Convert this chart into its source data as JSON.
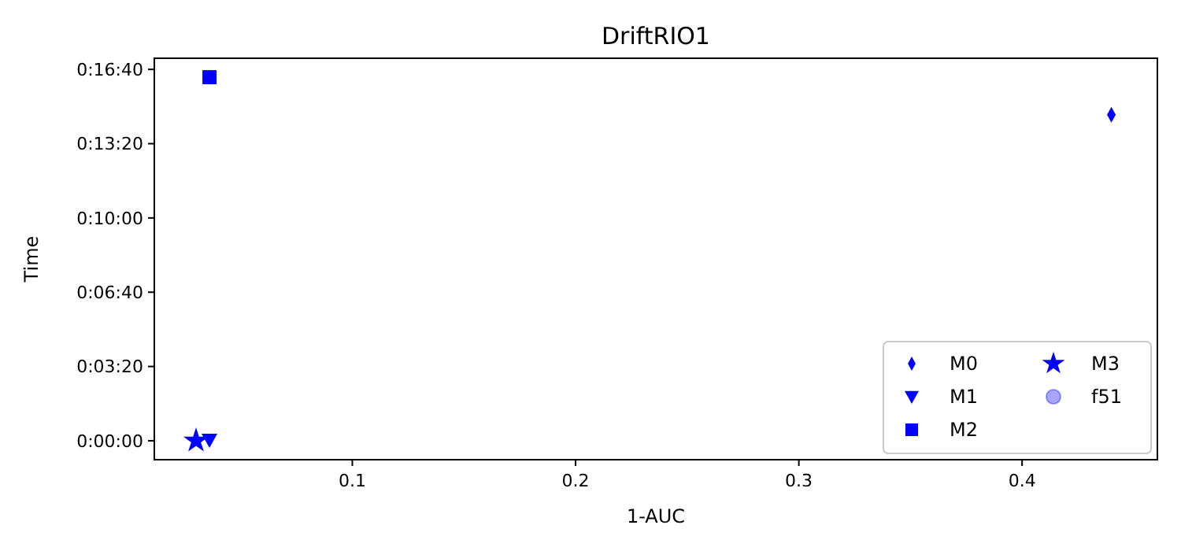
{
  "chart_data": {
    "type": "scatter",
    "title": "DriftRIO1",
    "xlabel": "1-AUC",
    "ylabel": "Time",
    "xlim": [
      0.0113,
      0.4606
    ],
    "ylim": [
      -51,
      1030
    ],
    "xticks": [
      0.1,
      0.2,
      0.3,
      0.4
    ],
    "yticks": [
      {
        "value": 0,
        "label": "0:00:00"
      },
      {
        "value": 200,
        "label": "0:03:20"
      },
      {
        "value": 400,
        "label": "0:06:40"
      },
      {
        "value": 600,
        "label": "0:10:00"
      },
      {
        "value": 800,
        "label": "0:13:20"
      },
      {
        "value": 1000,
        "label": "0:16:40"
      }
    ],
    "grid": false,
    "legend": "bottom right",
    "series": [
      {
        "name": "M0",
        "color": "#0000ff",
        "marker": "diamond",
        "x": [
          0.44
        ],
        "values": [
          878
        ]
      },
      {
        "name": "M1",
        "color": "#0000ff",
        "marker": "triangle",
        "x": [
          0.036
        ],
        "values": [
          2
        ]
      },
      {
        "name": "M2",
        "color": "#0000ff",
        "marker": "square",
        "x": [
          0.036
        ],
        "values": [
          979
        ]
      },
      {
        "name": "M3",
        "color": "#0000ff",
        "marker": "star",
        "x": [
          0.03
        ],
        "values": [
          0
        ]
      },
      {
        "name": "f51",
        "color": "#0000ff",
        "marker": "circle"
      }
    ]
  }
}
